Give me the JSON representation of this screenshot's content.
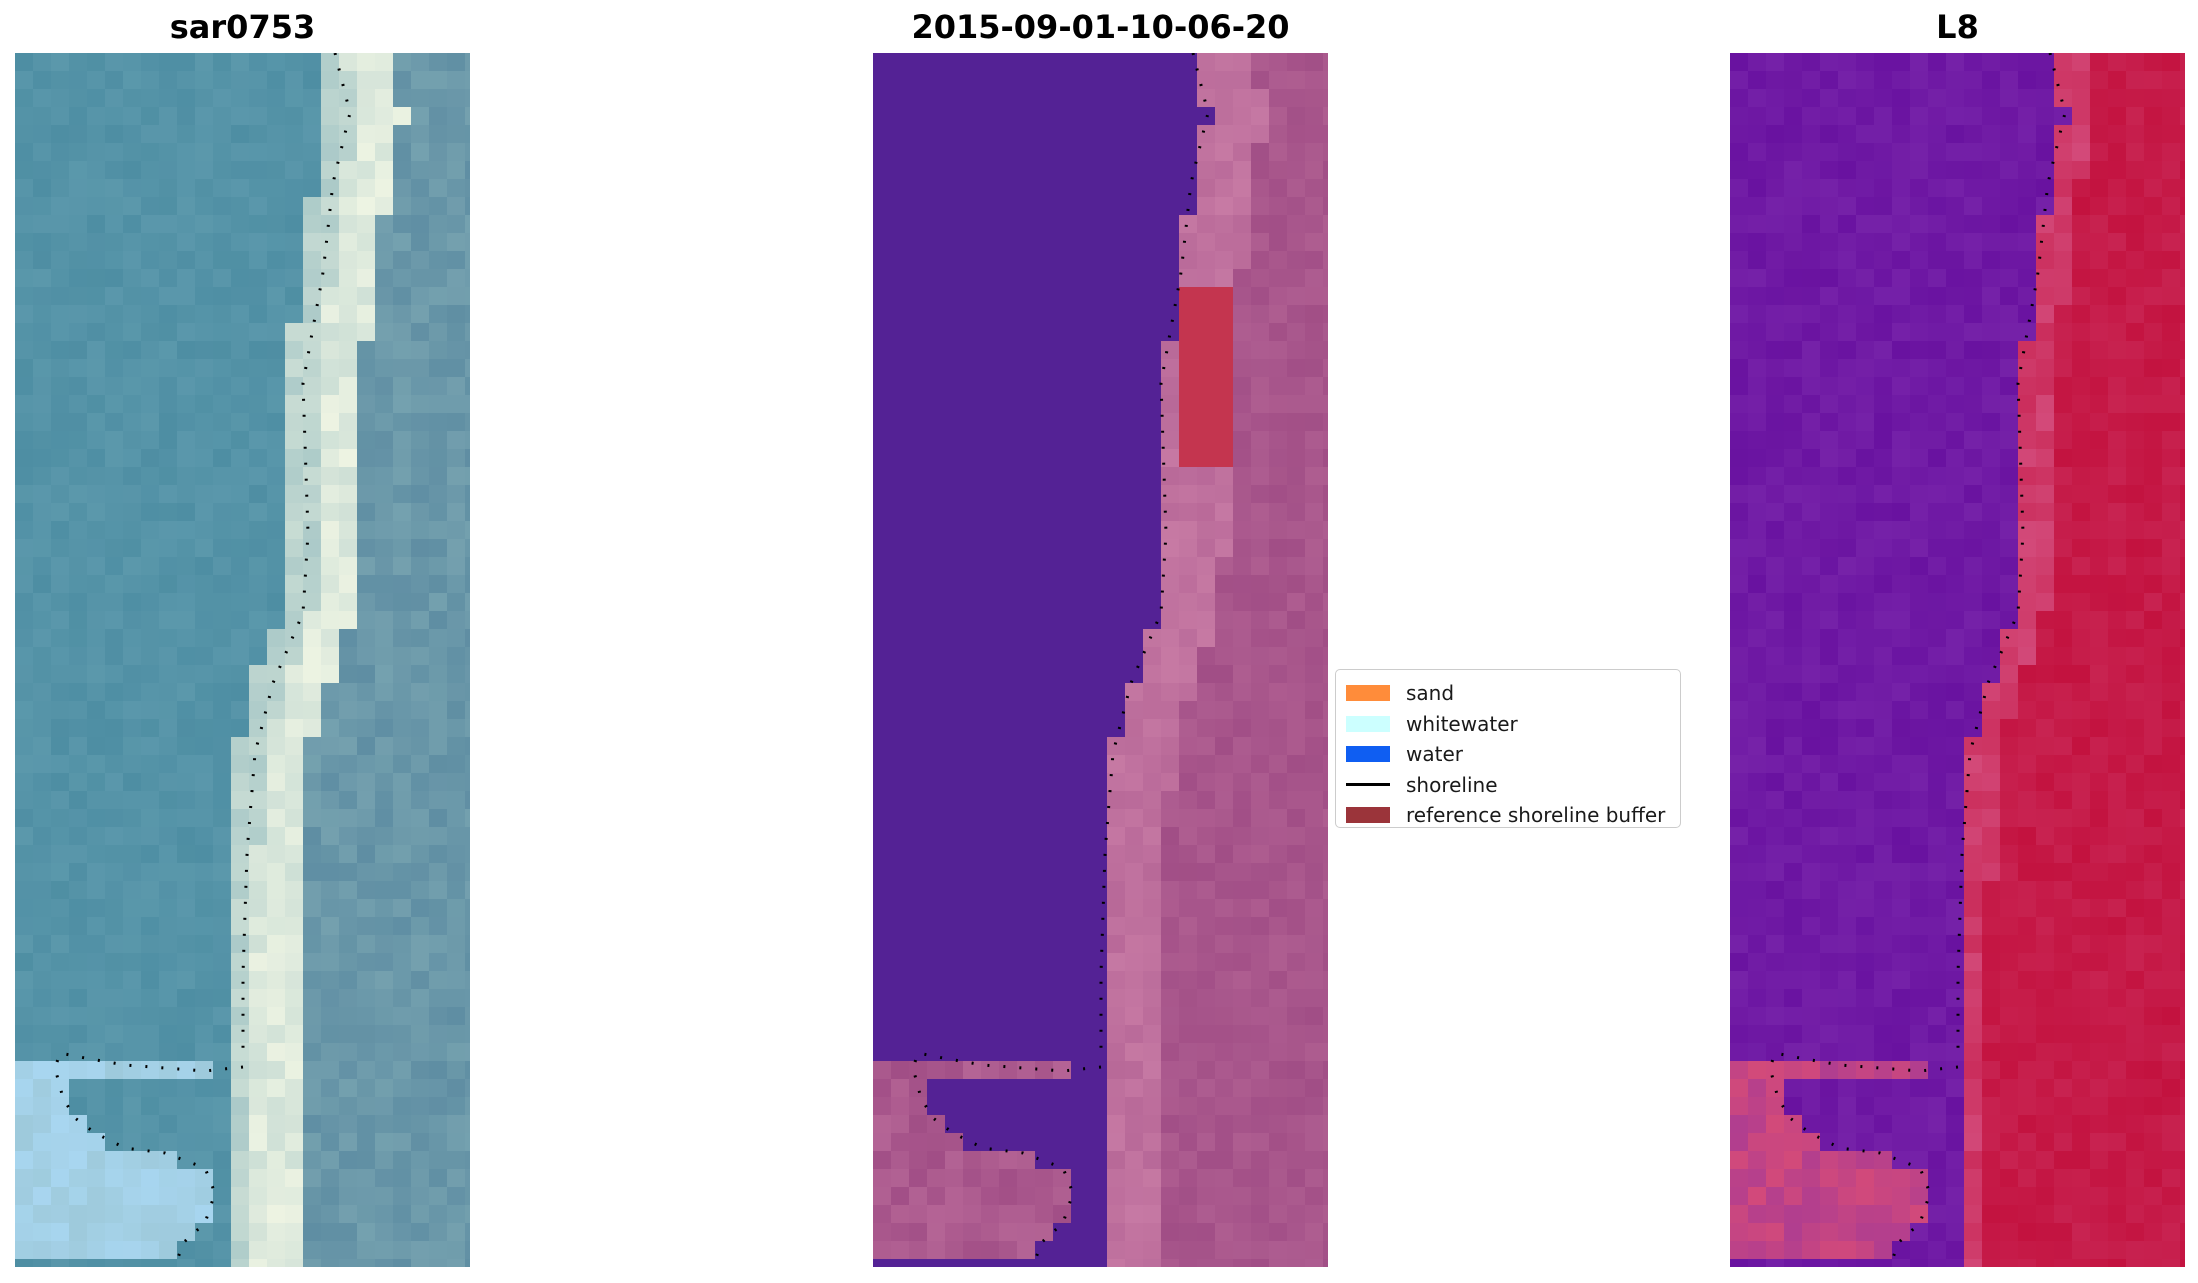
{
  "panels": [
    {
      "title": "sar0753",
      "palette": "rgb",
      "colors": {
        "water": "#4e8ea3",
        "water_light": "#68a2b4",
        "shore": "#8fb8bd",
        "beach": "#eef4e3",
        "land": "#5f8ea3",
        "foam": "#a8d6f0"
      }
    },
    {
      "title": "2015-09-01-10-06-20",
      "palette": "classified",
      "colors": {
        "water": "#542295",
        "land": "#a14e86",
        "land_light": "#c77aa4",
        "buffer": "#c4354f"
      }
    },
    {
      "title": "L8",
      "palette": "falsecolor",
      "colors": {
        "water": "#6912a0",
        "water_light": "#7e2cae",
        "land": "#c3123f",
        "land_light": "#d34a7a"
      }
    }
  ],
  "legend": {
    "items": [
      {
        "label": "sand",
        "color": "#ff8c3a",
        "kind": "patch"
      },
      {
        "label": "whitewater",
        "color": "#ccffff",
        "kind": "patch"
      },
      {
        "label": "water",
        "color": "#0f5ef2",
        "kind": "patch"
      },
      {
        "label": "shoreline",
        "color": "#000000",
        "kind": "line"
      },
      {
        "label": "reference shoreline buffer",
        "color": "#9b343a",
        "kind": "patch"
      }
    ]
  }
}
